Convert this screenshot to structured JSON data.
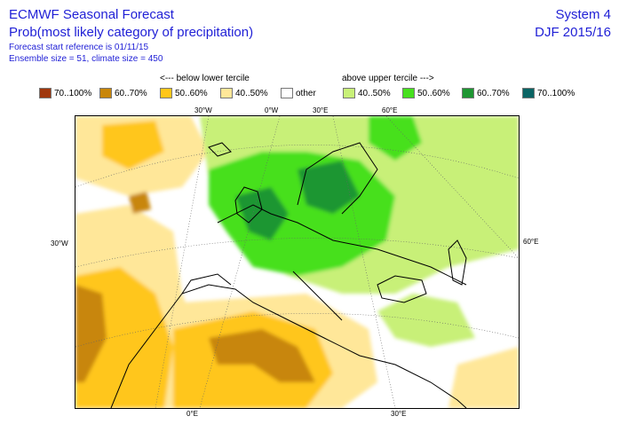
{
  "header": {
    "title": "ECMWF Seasonal Forecast",
    "subtitle": "Prob(most likely category of precipitation)",
    "forecast_ref": "Forecast start reference is 01/11/15",
    "ensemble": "Ensemble size = 51, climate size = 450",
    "system": "System 4",
    "season": "DJF 2015/16"
  },
  "legend": {
    "below_label": "<--- below lower tercile",
    "above_label": "above upper tercile --->",
    "items": [
      {
        "label": "70..100%",
        "color": "#a0380e"
      },
      {
        "label": "60..70%",
        "color": "#c8860a"
      },
      {
        "label": "50..60%",
        "color": "#ffc61a"
      },
      {
        "label": "40..50%",
        "color": "#ffe799"
      },
      {
        "label": "other",
        "color": "#ffffff"
      },
      {
        "label": "40..50%",
        "color": "#c8f078"
      },
      {
        "label": "50..60%",
        "color": "#46e01e"
      },
      {
        "label": "60..70%",
        "color": "#1e9632"
      },
      {
        "label": "70..100%",
        "color": "#0a6464"
      }
    ]
  },
  "map": {
    "grid_labels": {
      "top": [
        "30°W",
        "0°W",
        "30°E",
        "60°E"
      ],
      "left": [
        "30°W"
      ],
      "right": [
        "60°E"
      ],
      "bottom": [
        "0°E",
        "30°E"
      ]
    }
  }
}
